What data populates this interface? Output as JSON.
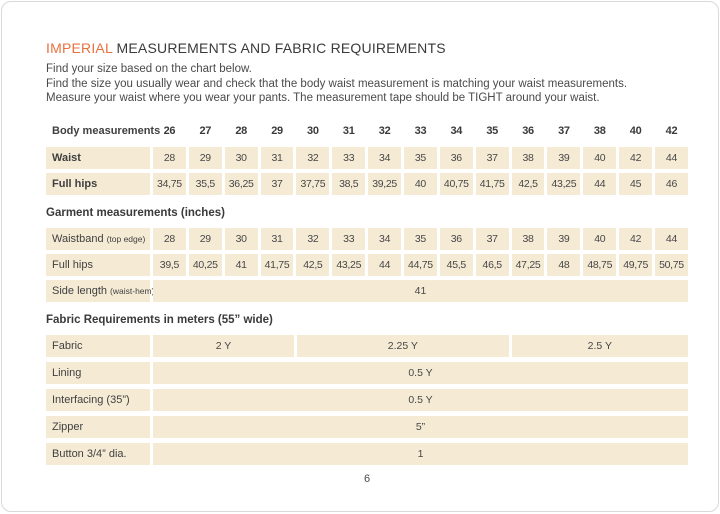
{
  "header": {
    "title_accent": "IMPERIAL",
    "title_rest": "MEASUREMENTS AND FABRIC REQUIREMENTS",
    "intro_lines": [
      "Find your size based on the chart below.",
      "Find the size you usually wear and check that the body waist measurement is matching your waist measurements.",
      "Measure your waist where you wear your pants. The measurement tape should be TIGHT around your waist."
    ]
  },
  "body_table": {
    "header_label": "Body measurements",
    "sizes": [
      "26",
      "27",
      "28",
      "29",
      "30",
      "31",
      "32",
      "33",
      "34",
      "35",
      "36",
      "37",
      "38",
      "40",
      "42"
    ],
    "rows": [
      {
        "label": "Waist",
        "values": [
          "28",
          "29",
          "30",
          "31",
          "32",
          "33",
          "34",
          "35",
          "36",
          "37",
          "38",
          "39",
          "40",
          "42",
          "44"
        ]
      },
      {
        "label": "Full hips",
        "values": [
          "34,75",
          "35,5",
          "36,25",
          "37",
          "37,75",
          "38,5",
          "39,25",
          "40",
          "40,75",
          "41,75",
          "42,5",
          "43,25",
          "44",
          "45",
          "46"
        ]
      }
    ]
  },
  "garment_table": {
    "heading": "Garment measurements (inches)",
    "rows": [
      {
        "label": "Waistband",
        "label_small": "(top edge)",
        "values": [
          "28",
          "29",
          "30",
          "31",
          "32",
          "33",
          "34",
          "35",
          "36",
          "37",
          "38",
          "39",
          "40",
          "42",
          "44"
        ]
      },
      {
        "label": "Full hips",
        "values": [
          "39,5",
          "40,25",
          "41",
          "41,75",
          "42,5",
          "43,25",
          "44",
          "44,75",
          "45,5",
          "46,5",
          "47,25",
          "48",
          "48,75",
          "49,75",
          "50,75"
        ]
      },
      {
        "label": "Side length",
        "label_small": "(waist-hem)",
        "value": "41"
      }
    ]
  },
  "fabric_table": {
    "heading": "Fabric Requirements in meters (55” wide)",
    "fabric_row": {
      "label": "Fabric",
      "cells": [
        {
          "value": "2 Y",
          "span": 4
        },
        {
          "value": "2.25 Y",
          "span": 6
        },
        {
          "value": "2.5 Y",
          "span": 5
        }
      ]
    },
    "rows": [
      {
        "label": "Lining",
        "value": "0.5 Y"
      },
      {
        "label": "Interfacing (35”)",
        "value": "0.5 Y"
      },
      {
        "label": "Zipper",
        "value": "5”"
      },
      {
        "label": "Button 3/4” dia.",
        "value": "1"
      }
    ]
  },
  "footer": {
    "page_number": "6"
  },
  "colors": {
    "accent": "#E8713F",
    "cell_background": "#F5EBD5",
    "text": "#3F3F3F"
  }
}
